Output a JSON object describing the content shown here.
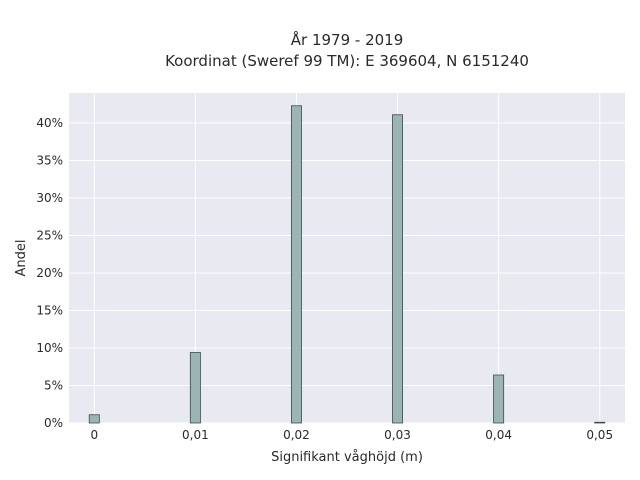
{
  "chart_data": {
    "type": "bar",
    "title_line1": "År 1979 - 2019",
    "title_line2": "Koordinat (Sweref 99 TM): E 369604, N 6151240",
    "xlabel": "Signifikant våghöjd (m)",
    "ylabel": "Andel",
    "xlim": [
      -0.0025,
      0.0525
    ],
    "ylim": [
      0,
      0.44
    ],
    "x_ticks": [
      {
        "value": 0,
        "label": "0"
      },
      {
        "value": 0.01,
        "label": "0,01"
      },
      {
        "value": 0.02,
        "label": "0,02"
      },
      {
        "value": 0.03,
        "label": "0,03"
      },
      {
        "value": 0.04,
        "label": "0,04"
      },
      {
        "value": 0.05,
        "label": "0,05"
      }
    ],
    "y_ticks": [
      {
        "value": 0,
        "label": "0%"
      },
      {
        "value": 0.05,
        "label": "5%"
      },
      {
        "value": 0.1,
        "label": "10%"
      },
      {
        "value": 0.15,
        "label": "15%"
      },
      {
        "value": 0.2,
        "label": "20%"
      },
      {
        "value": 0.25,
        "label": "25%"
      },
      {
        "value": 0.3,
        "label": "30%"
      },
      {
        "value": 0.35,
        "label": "35%"
      },
      {
        "value": 0.4,
        "label": "40%"
      }
    ],
    "bin_width": 0.001,
    "x": [
      0,
      0.01,
      0.02,
      0.03,
      0.04,
      0.05
    ],
    "values": [
      0.011,
      0.094,
      0.423,
      0.411,
      0.064,
      0.001
    ],
    "grid": true,
    "colors": {
      "plot_background": "#e9e9f1",
      "grid": "#ffffff",
      "bar_fill": "#9bb5b4",
      "bar_stroke": "#3d4a4a"
    }
  }
}
